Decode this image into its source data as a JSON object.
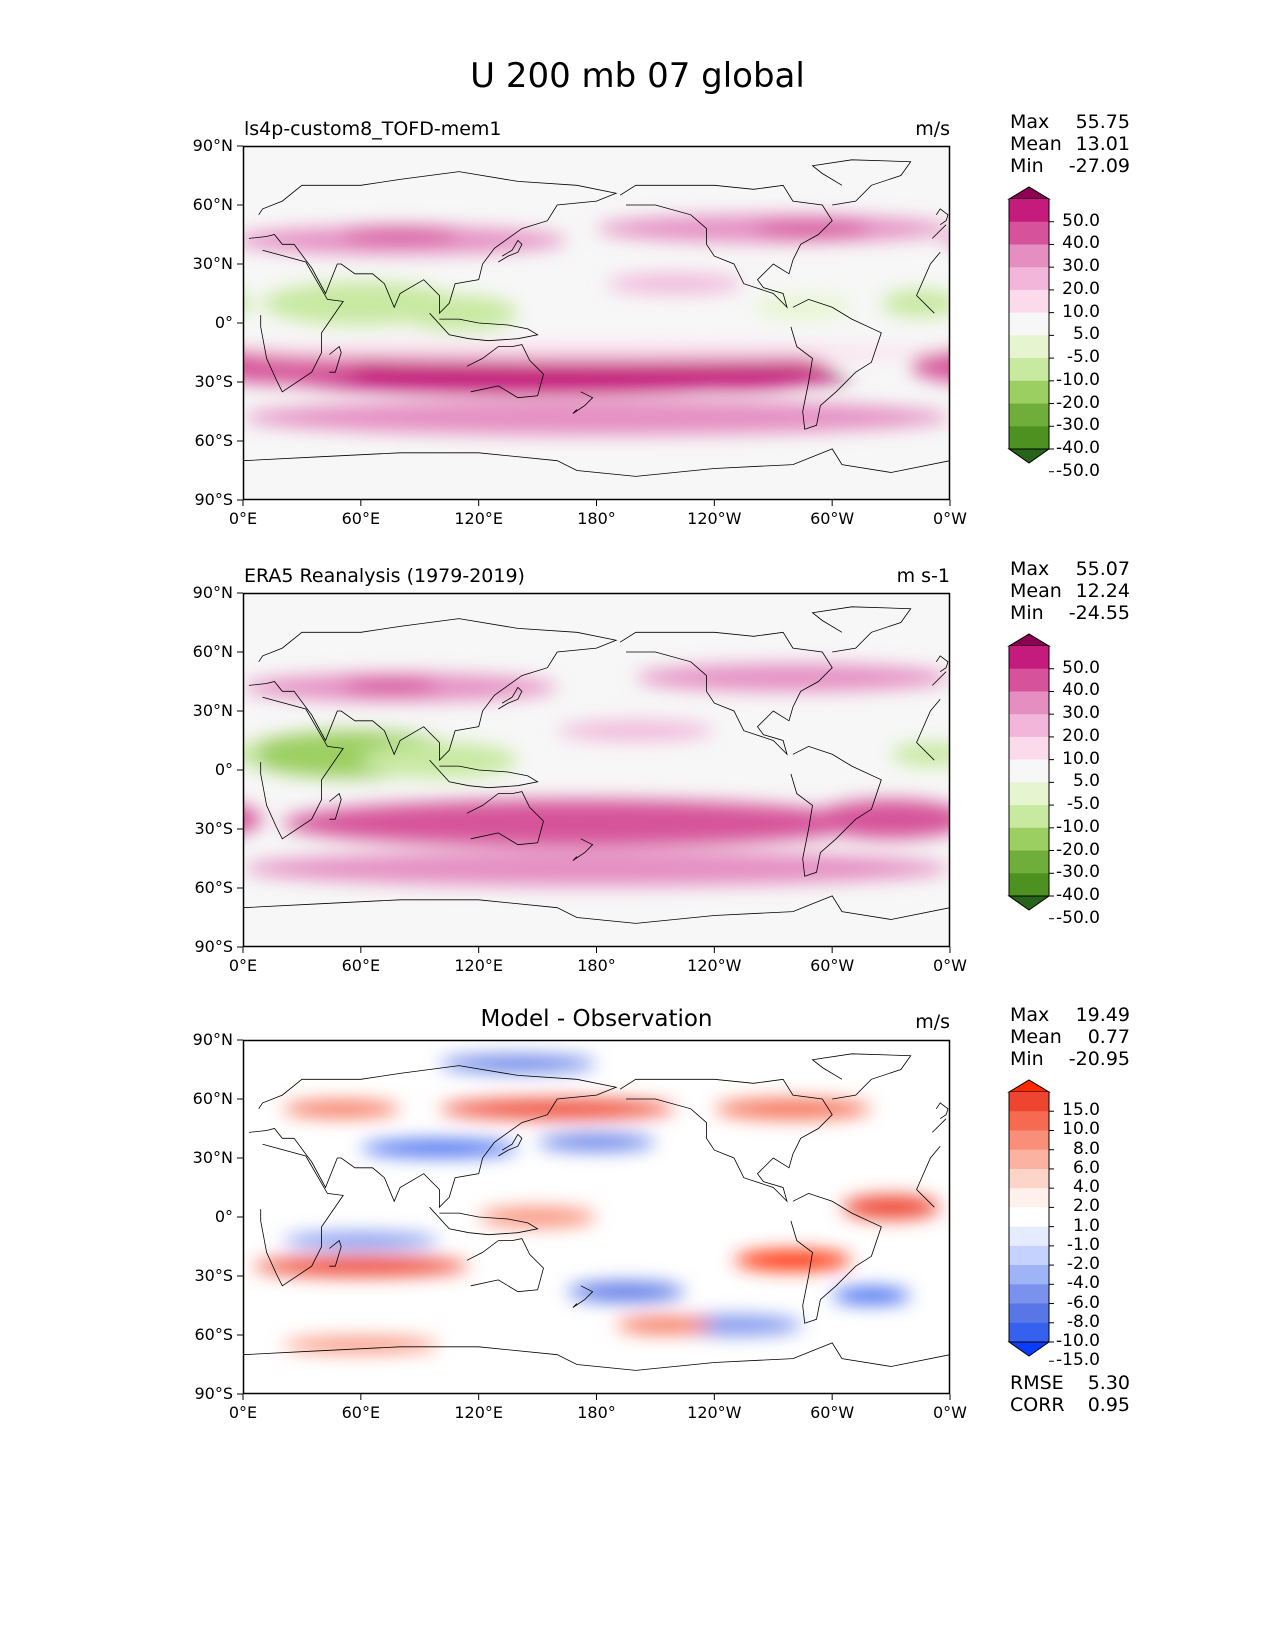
{
  "suptitle": "U 200 mb 07 global",
  "lon_ticks": [
    "0°E",
    "60°E",
    "120°E",
    "180°",
    "120°W",
    "60°W",
    "0°W"
  ],
  "lat_ticks": [
    "90°N",
    "60°N",
    "30°N",
    "0°",
    "30°S",
    "60°S",
    "90°S"
  ],
  "panels": [
    {
      "title": "ls4p-custom8_TOFD-mem1",
      "units": "m/s",
      "stats": [
        {
          "label": "Max",
          "value": "55.75"
        },
        {
          "label": "Mean",
          "value": "13.01"
        },
        {
          "label": "Min",
          "value": "-27.09"
        }
      ]
    },
    {
      "title": "ERA5 Reanalysis (1979-2019)",
      "units": "m s-1",
      "stats": [
        {
          "label": "Max",
          "value": "55.07"
        },
        {
          "label": "Mean",
          "value": "12.24"
        },
        {
          "label": "Min",
          "value": "-24.55"
        }
      ]
    },
    {
      "title": "Model - Observation",
      "units": "m/s",
      "stats": [
        {
          "label": "Max",
          "value": "19.49"
        },
        {
          "label": "Mean",
          "value": "0.77"
        },
        {
          "label": "Min",
          "value": "-20.95"
        }
      ],
      "metrics": [
        {
          "label": "RMSE",
          "value": "5.30"
        },
        {
          "label": "CORR",
          "value": "0.95"
        }
      ]
    }
  ],
  "colorbars": {
    "field": {
      "labels": [
        "50.0",
        "40.0",
        "30.0",
        "20.0",
        "10.0",
        "5.0",
        "-5.0",
        "-10.0",
        "-20.0",
        "-30.0",
        "-40.0",
        "-50.0"
      ],
      "colors": [
        "#8e0152",
        "#c51b7d",
        "#d6529a",
        "#e58ec2",
        "#f1b6da",
        "#fbdbeb",
        "#f7f7f7",
        "#e6f5d0",
        "#c7e9a0",
        "#9ccf62",
        "#6fae3b",
        "#4d9221",
        "#276419"
      ]
    },
    "diff": {
      "labels": [
        "15.0",
        "10.0",
        "8.0",
        "6.0",
        "4.0",
        "2.0",
        "1.0",
        "-1.0",
        "-2.0",
        "-4.0",
        "-6.0",
        "-8.0",
        "-10.0",
        "-15.0"
      ],
      "colors": [
        "#ff2a00",
        "#ee4530",
        "#f56a50",
        "#f98f78",
        "#fbb2a0",
        "#fdd4c8",
        "#fff0ec",
        "#ffffff",
        "#e6ecff",
        "#c5d2fd",
        "#9fb3f7",
        "#7a92ee",
        "#5876e6",
        "#3561ee",
        "#0a3cff"
      ]
    }
  },
  "chart_data": [
    {
      "type": "heatmap",
      "title": "ls4p-custom8_TOFD-mem1",
      "variable": "U 200 mb 07 global",
      "units": "m/s",
      "xlim": [
        0,
        360
      ],
      "ylim": [
        -90,
        90
      ],
      "levels": [
        -50,
        -40,
        -30,
        -20,
        -10,
        -5,
        5,
        10,
        20,
        30,
        40,
        50
      ],
      "stats": {
        "max": 55.75,
        "mean": 13.01,
        "min": -27.09
      },
      "features": [
        {
          "lon": 185,
          "lat": -28,
          "lon_w": 250,
          "lat_w": 10,
          "value": 52
        },
        {
          "lon": 150,
          "lat": -25,
          "lon_w": 300,
          "lat_w": 22,
          "value": 42
        },
        {
          "lon": 20,
          "lat": -22,
          "lon_w": 80,
          "lat_w": 18,
          "value": 36
        },
        {
          "lon": 250,
          "lat": -25,
          "lon_w": 100,
          "lat_w": 18,
          "value": 45
        },
        {
          "lon": 180,
          "lat": -48,
          "lon_w": 360,
          "lat_w": 18,
          "value": 22
        },
        {
          "lon": 80,
          "lat": 42,
          "lon_w": 170,
          "lat_w": 14,
          "value": 26
        },
        {
          "lon": 80,
          "lat": 45,
          "lon_w": 60,
          "lat_w": 8,
          "value": 36
        },
        {
          "lon": 270,
          "lat": 48,
          "lon_w": 180,
          "lat_w": 14,
          "value": 24
        },
        {
          "lon": 290,
          "lat": 48,
          "lon_w": 60,
          "lat_w": 8,
          "value": 36
        },
        {
          "lon": 60,
          "lat": 10,
          "lon_w": 100,
          "lat_w": 22,
          "value": -20
        },
        {
          "lon": 110,
          "lat": 5,
          "lon_w": 60,
          "lat_w": 18,
          "value": -14
        },
        {
          "lon": 285,
          "lat": 8,
          "lon_w": 50,
          "lat_w": 12,
          "value": -10
        },
        {
          "lon": 345,
          "lat": 10,
          "lon_w": 40,
          "lat_w": 14,
          "value": -12
        },
        {
          "lon": 220,
          "lat": 20,
          "lon_w": 70,
          "lat_w": 10,
          "value": 14
        },
        {
          "lon": 180,
          "lat": -15,
          "lon_w": 360,
          "lat_w": 8,
          "value": 8
        }
      ]
    },
    {
      "type": "heatmap",
      "title": "ERA5 Reanalysis (1979-2019)",
      "units": "m s-1",
      "xlim": [
        0,
        360
      ],
      "ylim": [
        -90,
        90
      ],
      "levels": [
        -50,
        -40,
        -30,
        -20,
        -10,
        -5,
        5,
        10,
        20,
        30,
        40,
        50
      ],
      "stats": {
        "max": 55.07,
        "mean": 12.24,
        "min": -24.55
      },
      "features": [
        {
          "lon": 150,
          "lat": -30,
          "lon_w": 170,
          "lat_w": 10,
          "value": 50
        },
        {
          "lon": 170,
          "lat": -27,
          "lon_w": 300,
          "lat_w": 24,
          "value": 36
        },
        {
          "lon": 180,
          "lat": -50,
          "lon_w": 360,
          "lat_w": 18,
          "value": 22
        },
        {
          "lon": 330,
          "lat": -25,
          "lon_w": 80,
          "lat_w": 20,
          "value": 34
        },
        {
          "lon": 80,
          "lat": 42,
          "lon_w": 160,
          "lat_w": 14,
          "value": 24
        },
        {
          "lon": 75,
          "lat": 43,
          "lon_w": 50,
          "lat_w": 8,
          "value": 32
        },
        {
          "lon": 280,
          "lat": 47,
          "lon_w": 160,
          "lat_w": 14,
          "value": 22
        },
        {
          "lon": 55,
          "lat": 8,
          "lon_w": 110,
          "lat_w": 24,
          "value": -22
        },
        {
          "lon": 100,
          "lat": 5,
          "lon_w": 80,
          "lat_w": 18,
          "value": -15
        },
        {
          "lon": 350,
          "lat": 8,
          "lon_w": 40,
          "lat_w": 12,
          "value": -14
        },
        {
          "lon": 200,
          "lat": 20,
          "lon_w": 80,
          "lat_w": 10,
          "value": 12
        }
      ]
    },
    {
      "type": "heatmap",
      "title": "Model - Observation",
      "units": "m/s",
      "xlim": [
        0,
        360
      ],
      "ylim": [
        -90,
        90
      ],
      "levels": [
        -15,
        -10,
        -8,
        -6,
        -4,
        -2,
        -1,
        1,
        2,
        4,
        6,
        8,
        10,
        15
      ],
      "stats": {
        "max": 19.49,
        "mean": 0.77,
        "min": -20.95,
        "rmse": 5.3,
        "corr": 0.95
      },
      "features": [
        {
          "lon": 60,
          "lat": -25,
          "lon_w": 110,
          "lat_w": 10,
          "value": 12
        },
        {
          "lon": 280,
          "lat": -22,
          "lon_w": 60,
          "lat_w": 10,
          "value": 15
        },
        {
          "lon": 195,
          "lat": -38,
          "lon_w": 60,
          "lat_w": 10,
          "value": -10
        },
        {
          "lon": 320,
          "lat": -40,
          "lon_w": 40,
          "lat_w": 8,
          "value": -12
        },
        {
          "lon": 250,
          "lat": -55,
          "lon_w": 70,
          "lat_w": 10,
          "value": -8
        },
        {
          "lon": 100,
          "lat": 35,
          "lon_w": 80,
          "lat_w": 8,
          "value": -14
        },
        {
          "lon": 180,
          "lat": 38,
          "lon_w": 60,
          "lat_w": 8,
          "value": -10
        },
        {
          "lon": 160,
          "lat": 55,
          "lon_w": 120,
          "lat_w": 10,
          "value": 10
        },
        {
          "lon": 50,
          "lat": 55,
          "lon_w": 60,
          "lat_w": 8,
          "value": 8
        },
        {
          "lon": 280,
          "lat": 55,
          "lon_w": 80,
          "lat_w": 10,
          "value": 9
        },
        {
          "lon": 140,
          "lat": 78,
          "lon_w": 80,
          "lat_w": 8,
          "value": -10
        },
        {
          "lon": 330,
          "lat": 5,
          "lon_w": 50,
          "lat_w": 12,
          "value": 12
        },
        {
          "lon": 150,
          "lat": 0,
          "lon_w": 60,
          "lat_w": 10,
          "value": 7
        },
        {
          "lon": 60,
          "lat": -12,
          "lon_w": 80,
          "lat_w": 8,
          "value": -7
        },
        {
          "lon": 215,
          "lat": -55,
          "lon_w": 50,
          "lat_w": 8,
          "value": 8
        },
        {
          "lon": 60,
          "lat": -65,
          "lon_w": 80,
          "lat_w": 8,
          "value": 7
        }
      ]
    }
  ]
}
